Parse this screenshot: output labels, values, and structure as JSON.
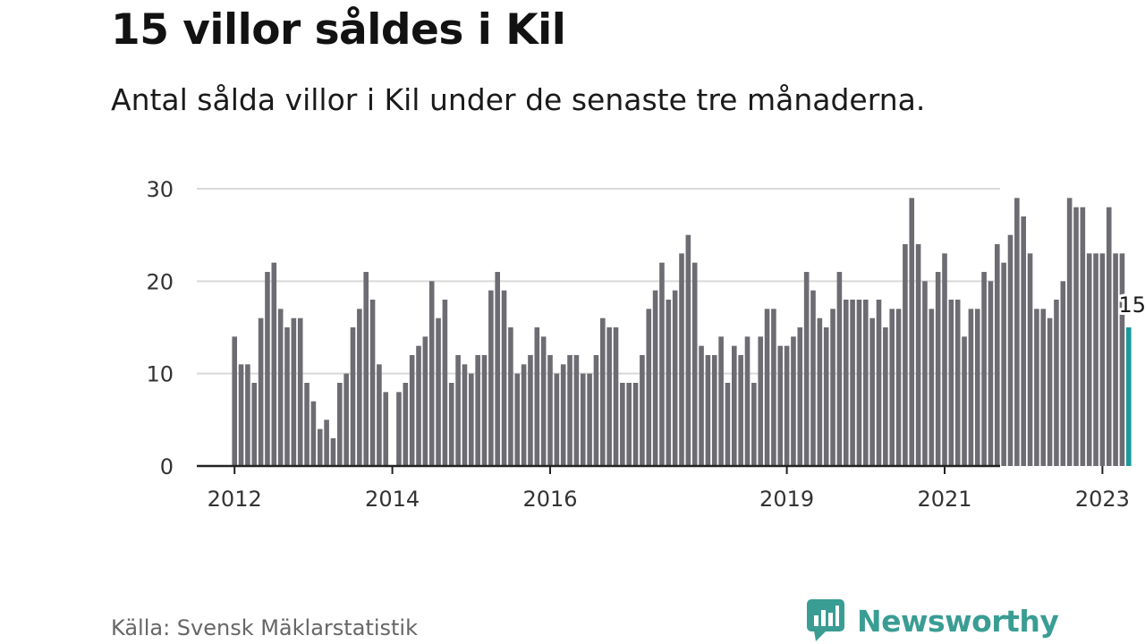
{
  "title": "15 villor såldes i Kil",
  "subtitle": "Antal sålda villor i Kil under de senaste tre månaderna.",
  "source": "Källa: Svensk Mäklarstatistik",
  "brand": {
    "name": "Newsworthy",
    "color": "#3a9d94",
    "icon": "newsworthy-logo-icon"
  },
  "colors": {
    "bar": "#6d6c72",
    "highlight": "#1a9a9a",
    "grid": "#d9d9d9",
    "axis": "#222222"
  },
  "chart_data": {
    "type": "bar",
    "start_label": "2012-01",
    "interval": "month",
    "ylim": [
      0,
      30
    ],
    "yticks": [
      0,
      10,
      20,
      30
    ],
    "xticks": [
      "2012",
      "2014",
      "2016",
      "2019",
      "2021",
      "2023"
    ],
    "grid": true,
    "highlight_last": true,
    "last_label": "15",
    "values": [
      14,
      11,
      11,
      9,
      16,
      21,
      22,
      17,
      15,
      16,
      16,
      9,
      7,
      4,
      5,
      3,
      9,
      10,
      15,
      17,
      21,
      18,
      11,
      8,
      0,
      8,
      9,
      12,
      13,
      14,
      20,
      16,
      18,
      9,
      12,
      11,
      10,
      12,
      12,
      19,
      21,
      19,
      15,
      10,
      11,
      12,
      15,
      14,
      12,
      10,
      11,
      12,
      12,
      10,
      10,
      12,
      16,
      15,
      15,
      9,
      9,
      9,
      12,
      17,
      19,
      22,
      18,
      19,
      23,
      25,
      22,
      13,
      12,
      12,
      14,
      9,
      13,
      12,
      14,
      9,
      14,
      17,
      17,
      13,
      13,
      14,
      15,
      21,
      19,
      16,
      15,
      17,
      21,
      18,
      18,
      18,
      18,
      16,
      18,
      15,
      17,
      17,
      24,
      29,
      24,
      20,
      17,
      21,
      23,
      18,
      18,
      14,
      17,
      17,
      21,
      20,
      24,
      22,
      25,
      29,
      27,
      23,
      17,
      17,
      16,
      18,
      20,
      29,
      28,
      28,
      23,
      23,
      23,
      28,
      23,
      23,
      15
    ]
  }
}
